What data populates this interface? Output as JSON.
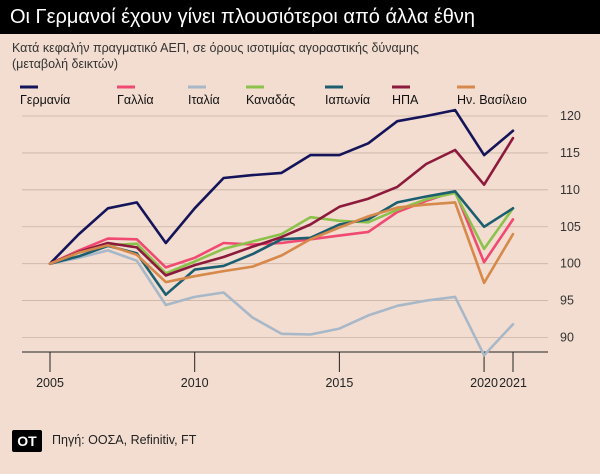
{
  "header": {
    "title": "Οι Γερμανοί έχουν γίνει πλουσιότεροι από άλλα έθνη",
    "subtitle_line1": "Κατά κεφαλήν πραγματικό ΑΕΠ, σε όρους ισοτιμίας αγοραστικής δύναμης",
    "subtitle_line2": "(μεταβολή δεικτών)"
  },
  "footer": {
    "logo_text": "ΟΤ",
    "source": "Πηγή: ΟΟΣΑ, Refinitiv, FT"
  },
  "chart_data": {
    "type": "line",
    "xlim": [
      2005,
      2021
    ],
    "ylim": [
      86,
      121
    ],
    "x_ticks": [
      2005,
      2010,
      2015,
      2020,
      2021
    ],
    "x_tick_labels": [
      "2005",
      "2010",
      "2015",
      "2020",
      "2021"
    ],
    "y_ticks": [
      90,
      95,
      100,
      105,
      110,
      115,
      120
    ],
    "y_tick_labels": [
      "90",
      "95",
      "100",
      "105",
      "110",
      "115",
      "120"
    ],
    "grid": true,
    "legend_placement": "top",
    "x": [
      2005,
      2006,
      2007,
      2008,
      2009,
      2010,
      2011,
      2012,
      2013,
      2014,
      2015,
      2016,
      2017,
      2018,
      2019,
      2020,
      2021
    ],
    "series": [
      {
        "name": "Γερμανία",
        "color": "#14145a",
        "values": [
          100,
          104,
          107.5,
          108.3,
          102.8,
          107.5,
          111.6,
          112,
          112.3,
          114.7,
          114.7,
          116.3,
          119.3,
          120,
          120.8,
          114.7,
          118
        ]
      },
      {
        "name": "Γαλλία",
        "color": "#f04a72",
        "values": [
          100,
          101.8,
          103.4,
          103.3,
          99.5,
          100.8,
          102.8,
          102.6,
          102.8,
          103.3,
          103.8,
          104.3,
          107,
          108.5,
          109.8,
          100.2,
          106
        ]
      },
      {
        "name": "Ιταλία",
        "color": "#a8b8c8",
        "values": [
          100,
          100.8,
          101.8,
          100.4,
          94.4,
          95.5,
          96.1,
          92.7,
          90.5,
          90.4,
          91.2,
          93,
          94.3,
          95,
          95.5,
          87.6,
          91.8
        ]
      },
      {
        "name": "Καναδάς",
        "color": "#8cc14c",
        "values": [
          100,
          101.5,
          102.5,
          102.7,
          98.7,
          100.3,
          102,
          103,
          104,
          106.3,
          105.8,
          105.6,
          107.3,
          108.7,
          109.6,
          102,
          107.5
        ]
      },
      {
        "name": "Ιαπωνία",
        "color": "#1a5e70",
        "values": [
          100,
          101,
          102.4,
          101.4,
          95.8,
          99.2,
          99.7,
          101.3,
          103.3,
          103.5,
          105.3,
          106,
          108.3,
          109.1,
          109.8,
          105,
          107.5
        ]
      },
      {
        "name": "ΗΠΑ",
        "color": "#8c1a3c",
        "values": [
          100,
          101.6,
          102.8,
          102.2,
          98.4,
          99.8,
          100.9,
          102.3,
          103.6,
          105.3,
          107.7,
          108.8,
          110.4,
          113.5,
          115.4,
          110.7,
          117
        ]
      },
      {
        "name": "Ην. Βασίλειο",
        "color": "#d6894a",
        "values": [
          100,
          101.5,
          102.5,
          101.2,
          97.5,
          98.3,
          99,
          99.6,
          101.1,
          103.3,
          104.9,
          106.4,
          107.6,
          108,
          108.3,
          97.4,
          104
        ]
      }
    ]
  }
}
